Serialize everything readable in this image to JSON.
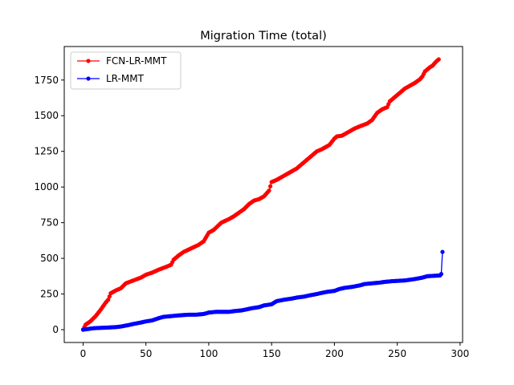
{
  "chart_data": {
    "type": "line",
    "title": "Migration Time (total)",
    "xlabel": "",
    "ylabel": "",
    "xlim": [
      -15,
      302
    ],
    "ylim": [
      -90,
      1985
    ],
    "xticks": [
      0,
      50,
      100,
      150,
      200,
      250,
      300
    ],
    "yticks": [
      0,
      250,
      500,
      750,
      1000,
      1250,
      1500,
      1750
    ],
    "grid": false,
    "legend_position": "top-left",
    "series": [
      {
        "name": "FCN-LR-MMT",
        "color": "#ff0000",
        "marker": "circle",
        "control_points": [
          [
            0,
            0
          ],
          [
            2,
            35
          ],
          [
            6,
            60
          ],
          [
            10,
            95
          ],
          [
            14,
            140
          ],
          [
            18,
            190
          ],
          [
            20,
            210
          ],
          [
            22,
            255
          ],
          [
            26,
            275
          ],
          [
            30,
            290
          ],
          [
            34,
            325
          ],
          [
            40,
            345
          ],
          [
            46,
            365
          ],
          [
            50,
            385
          ],
          [
            55,
            400
          ],
          [
            60,
            420
          ],
          [
            66,
            440
          ],
          [
            70,
            455
          ],
          [
            72,
            490
          ],
          [
            76,
            520
          ],
          [
            80,
            545
          ],
          [
            86,
            570
          ],
          [
            92,
            595
          ],
          [
            96,
            620
          ],
          [
            100,
            680
          ],
          [
            104,
            700
          ],
          [
            110,
            750
          ],
          [
            116,
            775
          ],
          [
            120,
            795
          ],
          [
            124,
            820
          ],
          [
            128,
            845
          ],
          [
            132,
            880
          ],
          [
            136,
            905
          ],
          [
            140,
            915
          ],
          [
            144,
            935
          ],
          [
            148,
            975
          ],
          [
            150,
            1035
          ],
          [
            154,
            1050
          ],
          [
            160,
            1080
          ],
          [
            166,
            1110
          ],
          [
            170,
            1130
          ],
          [
            176,
            1175
          ],
          [
            180,
            1205
          ],
          [
            186,
            1250
          ],
          [
            190,
            1265
          ],
          [
            196,
            1295
          ],
          [
            200,
            1340
          ],
          [
            202,
            1355
          ],
          [
            206,
            1360
          ],
          [
            210,
            1380
          ],
          [
            216,
            1410
          ],
          [
            220,
            1425
          ],
          [
            226,
            1445
          ],
          [
            230,
            1470
          ],
          [
            234,
            1520
          ],
          [
            238,
            1545
          ],
          [
            242,
            1560
          ],
          [
            244,
            1600
          ],
          [
            248,
            1630
          ],
          [
            252,
            1660
          ],
          [
            256,
            1690
          ],
          [
            260,
            1710
          ],
          [
            264,
            1730
          ],
          [
            268,
            1755
          ],
          [
            270,
            1775
          ],
          [
            272,
            1810
          ],
          [
            276,
            1840
          ],
          [
            278,
            1850
          ],
          [
            281,
            1880
          ],
          [
            283,
            1895
          ]
        ]
      },
      {
        "name": "LR-MMT",
        "color": "#0000ff",
        "marker": "circle",
        "control_points": [
          [
            0,
            0
          ],
          [
            4,
            5
          ],
          [
            8,
            10
          ],
          [
            12,
            12
          ],
          [
            20,
            15
          ],
          [
            26,
            18
          ],
          [
            30,
            22
          ],
          [
            36,
            32
          ],
          [
            40,
            40
          ],
          [
            46,
            50
          ],
          [
            50,
            58
          ],
          [
            55,
            65
          ],
          [
            60,
            80
          ],
          [
            64,
            90
          ],
          [
            70,
            95
          ],
          [
            76,
            100
          ],
          [
            84,
            105
          ],
          [
            90,
            105
          ],
          [
            96,
            110
          ],
          [
            100,
            120
          ],
          [
            106,
            125
          ],
          [
            116,
            125
          ],
          [
            120,
            130
          ],
          [
            126,
            135
          ],
          [
            130,
            142
          ],
          [
            134,
            150
          ],
          [
            140,
            158
          ],
          [
            144,
            170
          ],
          [
            150,
            178
          ],
          [
            154,
            200
          ],
          [
            160,
            210
          ],
          [
            166,
            218
          ],
          [
            170,
            225
          ],
          [
            176,
            232
          ],
          [
            180,
            240
          ],
          [
            186,
            250
          ],
          [
            190,
            258
          ],
          [
            194,
            265
          ],
          [
            200,
            272
          ],
          [
            204,
            285
          ],
          [
            208,
            293
          ],
          [
            214,
            300
          ],
          [
            220,
            310
          ],
          [
            224,
            320
          ],
          [
            230,
            325
          ],
          [
            236,
            330
          ],
          [
            240,
            335
          ],
          [
            246,
            340
          ],
          [
            250,
            342
          ],
          [
            256,
            345
          ],
          [
            260,
            350
          ],
          [
            264,
            355
          ],
          [
            270,
            365
          ],
          [
            274,
            375
          ],
          [
            280,
            378
          ],
          [
            284,
            380
          ],
          [
            285,
            390
          ],
          [
            286,
            545
          ]
        ]
      }
    ]
  }
}
